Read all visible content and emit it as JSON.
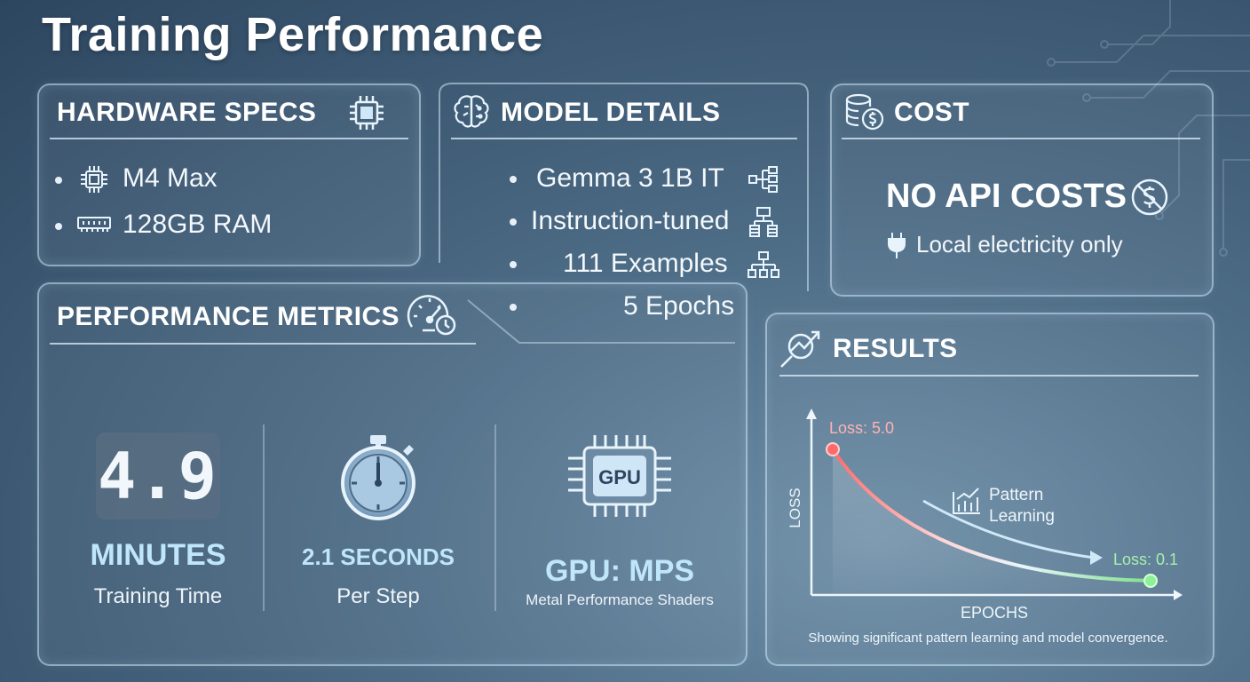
{
  "title": "Training Performance",
  "hardware": {
    "heading": "HARDWARE SPECS",
    "items": [
      {
        "label": "M4 Max",
        "icon": "chip-icon"
      },
      {
        "label": "128GB RAM",
        "icon": "ram-icon"
      }
    ]
  },
  "model": {
    "heading": "MODEL DETAILS",
    "items": [
      {
        "label": "Gemma 3 1B IT",
        "icon": "node-tree-icon"
      },
      {
        "label": "Instruction-tuned",
        "icon": "hierarchy-icon"
      },
      {
        "label": "111 Examples",
        "icon": "org-chart-icon"
      },
      {
        "label": "5 Epochs"
      }
    ]
  },
  "cost": {
    "heading": "COST",
    "headline": "NO API COSTS",
    "note": "Local electricity only"
  },
  "metrics": {
    "heading": "PERFORMANCE METRICS",
    "time_value": "4.9",
    "time_unit": "MINUTES",
    "time_label": "Training Time",
    "step_value": "2.1 SECONDS",
    "step_label": "Per Step",
    "gpu_chip_label": "GPU",
    "gpu_value": "GPU: MPS",
    "gpu_label": "Metal Performance Shaders"
  },
  "results": {
    "heading": "RESULTS",
    "y_label": "LOSS",
    "x_label": "EPOCHS",
    "start_label": "Loss: 5.0",
    "end_label": "Loss: 0.1",
    "pattern_label_1": "Pattern",
    "pattern_label_2": "Learning",
    "caption": "Showing significant pattern learning and model convergence."
  },
  "colors": {
    "accent": "#bfe6f9",
    "loss_start": "#ff6b6b",
    "loss_end": "#7ee08a"
  }
}
